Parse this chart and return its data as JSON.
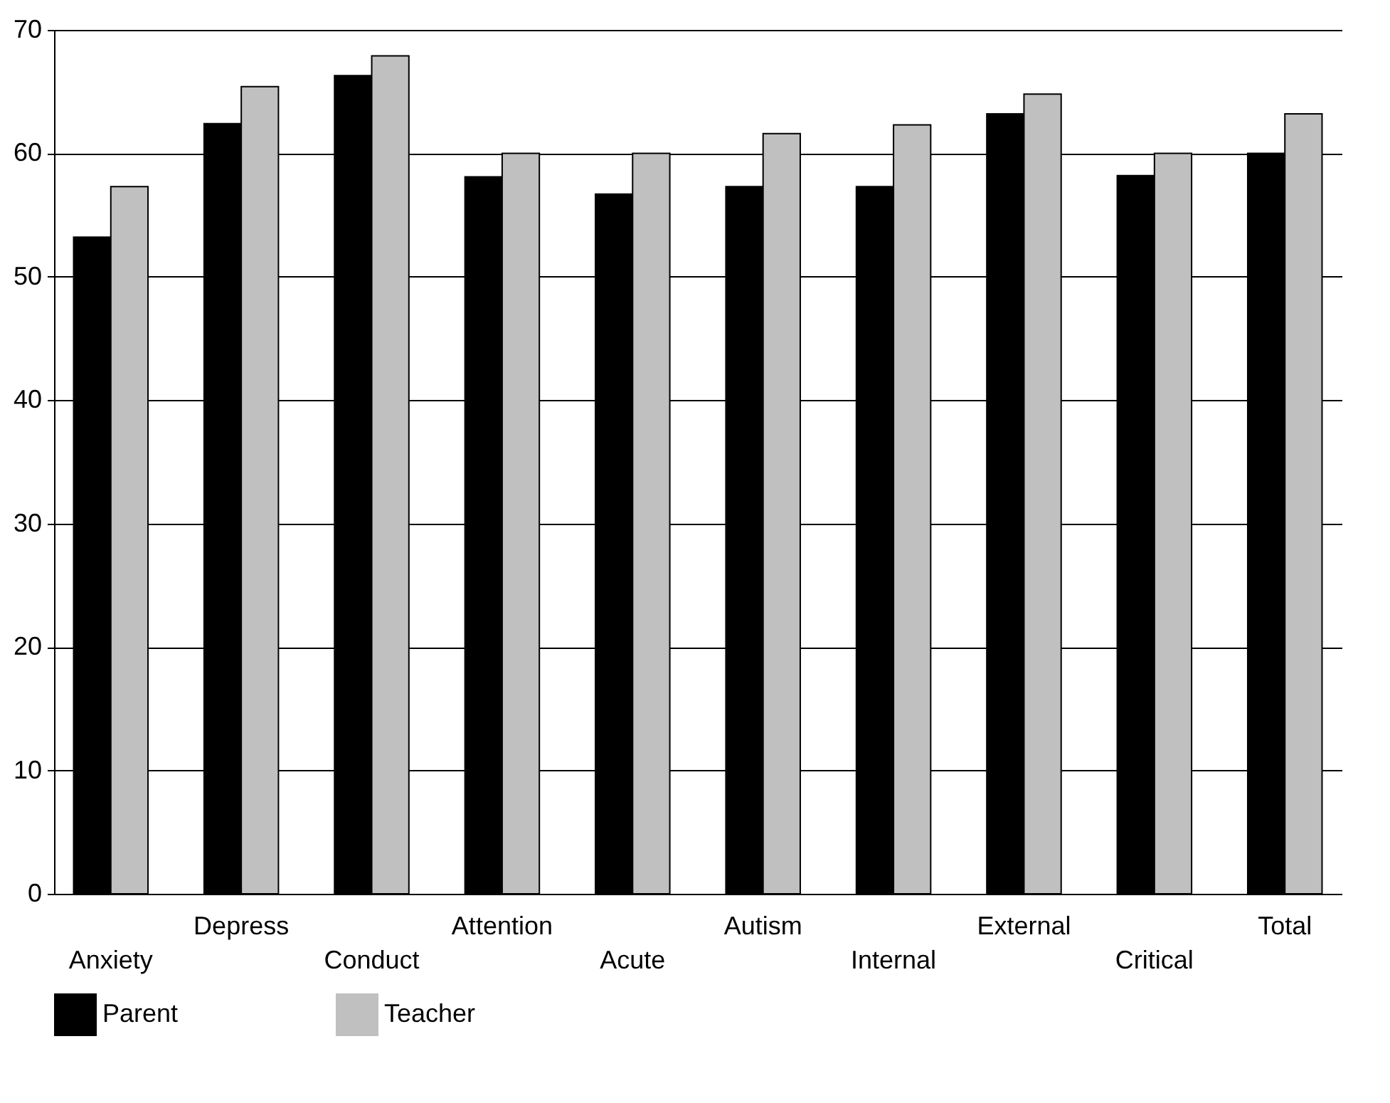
{
  "chart_data": {
    "type": "bar",
    "categories": [
      "Anxiety",
      "Depress",
      "Conduct",
      "Attention",
      "Acute",
      "Autism",
      "Internal",
      "External",
      "Critical",
      "Total"
    ],
    "series": [
      {
        "name": "Parent",
        "color": "#000000",
        "values": [
          53.2,
          62.4,
          66.3,
          58.1,
          56.7,
          57.3,
          57.3,
          63.2,
          58.2,
          60
        ]
      },
      {
        "name": "Teacher",
        "color": "#c0c0c0",
        "values": [
          57.3,
          65.4,
          67.9,
          60,
          60,
          61.6,
          62.3,
          64.8,
          60,
          63.2
        ]
      }
    ],
    "ylim": [
      0,
      70
    ],
    "yticks": [
      0,
      10,
      20,
      30,
      40,
      50,
      60,
      70
    ],
    "grid": "y",
    "legend": "bottom"
  }
}
